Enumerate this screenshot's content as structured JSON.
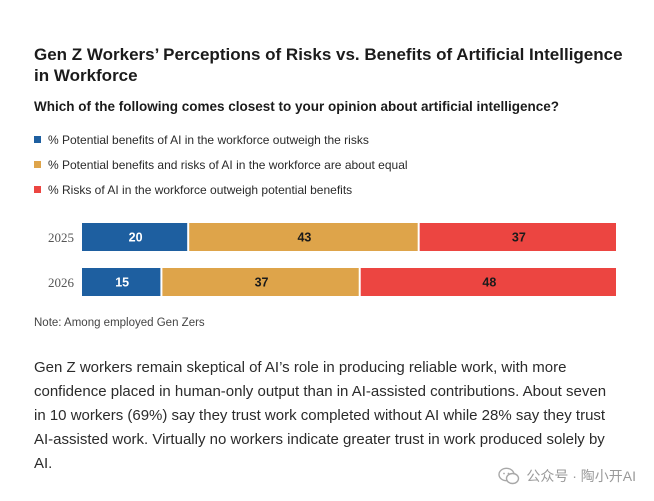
{
  "title": "Gen Z Workers’ Perceptions of Risks vs. Benefits of Artificial Intelligence in Workforce",
  "question": "Which of the following comes closest to your opinion about artificial intelligence?",
  "note": "Note: Among employed Gen Zers",
  "body_text": "Gen Z workers remain skeptical of AI’s role in producing reliable work, with more confidence placed in human-only output than in AI-assisted contributions. About seven in 10 workers (69%) say they trust work completed without AI while 28% say they trust AI-assisted work. Virtually no workers indicate greater trust in work produced solely by AI.",
  "watermark": {
    "text": "公众号 · 陶小开AI",
    "icon": "wechat-icon"
  },
  "chart_data": {
    "type": "bar",
    "orientation": "horizontal",
    "stacked": true,
    "categories": [
      "2025",
      "2026"
    ],
    "series": [
      {
        "name": "% Potential benefits of AI in the workforce outweigh the risks",
        "color": "#1e5fa0",
        "label_color": "#ffffff",
        "values": [
          20,
          15
        ]
      },
      {
        "name": "% Potential benefits and risks of AI in the workforce are about equal",
        "color": "#dea44a",
        "label_color": "#1b1b1b",
        "values": [
          43,
          37
        ]
      },
      {
        "name": "% Risks of AI in the workforce outweigh potential benefits",
        "color": "#ec4541",
        "label_color": "#1b1b1b",
        "values": [
          37,
          48
        ]
      }
    ],
    "legend_position": "top-left",
    "grid": false
  }
}
